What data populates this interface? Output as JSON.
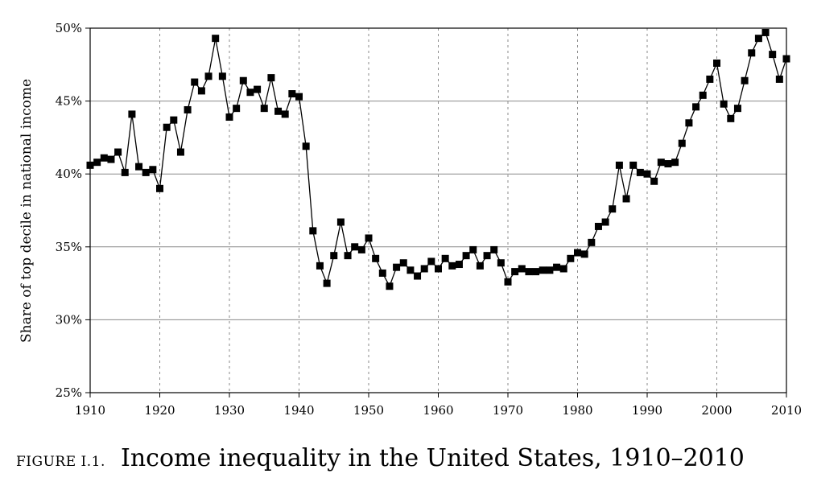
{
  "chart_data": {
    "type": "line",
    "title": "",
    "xlabel": "",
    "ylabel": "Share of top decile in national income",
    "xlim": [
      1910,
      2010
    ],
    "ylim": [
      25,
      50
    ],
    "x_ticks": [
      1910,
      1920,
      1930,
      1940,
      1950,
      1960,
      1970,
      1980,
      1990,
      2000,
      2010
    ],
    "y_ticks": [
      "25%",
      "30%",
      "35%",
      "40%",
      "45%",
      "50%"
    ],
    "y_tick_values": [
      25,
      30,
      35,
      40,
      45,
      50
    ],
    "grid": {
      "horizontal": "solid",
      "vertical": "dotted"
    },
    "marker": "square",
    "legend": "none",
    "series": [
      {
        "x": [
          1910,
          1911,
          1912,
          1913,
          1914,
          1915,
          1916,
          1917,
          1918,
          1919,
          1920,
          1921,
          1922,
          1923,
          1924,
          1925,
          1926,
          1927,
          1928,
          1929,
          1930,
          1931,
          1932,
          1933,
          1934,
          1935,
          1936,
          1937,
          1938,
          1939,
          1940,
          1941,
          1942,
          1943,
          1944,
          1945,
          1946,
          1947,
          1948,
          1949,
          1950,
          1951,
          1952,
          1953,
          1954,
          1955,
          1956,
          1957,
          1958,
          1959,
          1960,
          1961,
          1962,
          1963,
          1964,
          1965,
          1966,
          1967,
          1968,
          1969,
          1970,
          1971,
          1972,
          1973,
          1974,
          1975,
          1976,
          1977,
          1978,
          1979,
          1980,
          1981,
          1982,
          1983,
          1984,
          1985,
          1986,
          1987,
          1988,
          1989,
          1990,
          1991,
          1992,
          1993,
          1994,
          1995,
          1996,
          1997,
          1998,
          1999,
          2000,
          2001,
          2002,
          2003,
          2004,
          2005,
          2006,
          2007,
          2008,
          2009,
          2010
        ],
        "values": [
          40.6,
          40.8,
          41.1,
          41.0,
          41.5,
          40.1,
          44.1,
          40.5,
          40.1,
          40.3,
          39.0,
          43.2,
          43.7,
          41.5,
          44.4,
          46.3,
          45.7,
          46.7,
          49.3,
          46.7,
          43.9,
          44.5,
          46.4,
          45.6,
          45.8,
          44.5,
          46.6,
          44.3,
          44.1,
          45.5,
          45.3,
          41.9,
          36.1,
          33.7,
          32.5,
          34.4,
          36.7,
          34.4,
          35.0,
          34.8,
          35.6,
          34.2,
          33.2,
          32.3,
          33.6,
          33.9,
          33.4,
          33.0,
          33.5,
          34.0,
          33.5,
          34.2,
          33.7,
          33.8,
          34.4,
          34.8,
          33.7,
          34.4,
          34.8,
          33.9,
          32.6,
          33.3,
          33.5,
          33.3,
          33.3,
          33.4,
          33.4,
          33.6,
          33.5,
          34.2,
          34.6,
          34.5,
          35.3,
          36.4,
          36.7,
          37.6,
          40.6,
          38.3,
          40.6,
          40.1,
          40.0,
          39.5,
          40.8,
          40.7,
          40.8,
          42.1,
          43.5,
          44.6,
          45.4,
          46.5,
          47.6,
          44.8,
          43.8,
          44.5,
          46.4,
          48.3,
          49.3,
          49.7,
          48.2,
          46.5,
          47.9
        ]
      }
    ]
  },
  "caption": {
    "figure_label": "FIGURE I.1.",
    "title": "Income inequality in the United States, 1910–2010"
  }
}
